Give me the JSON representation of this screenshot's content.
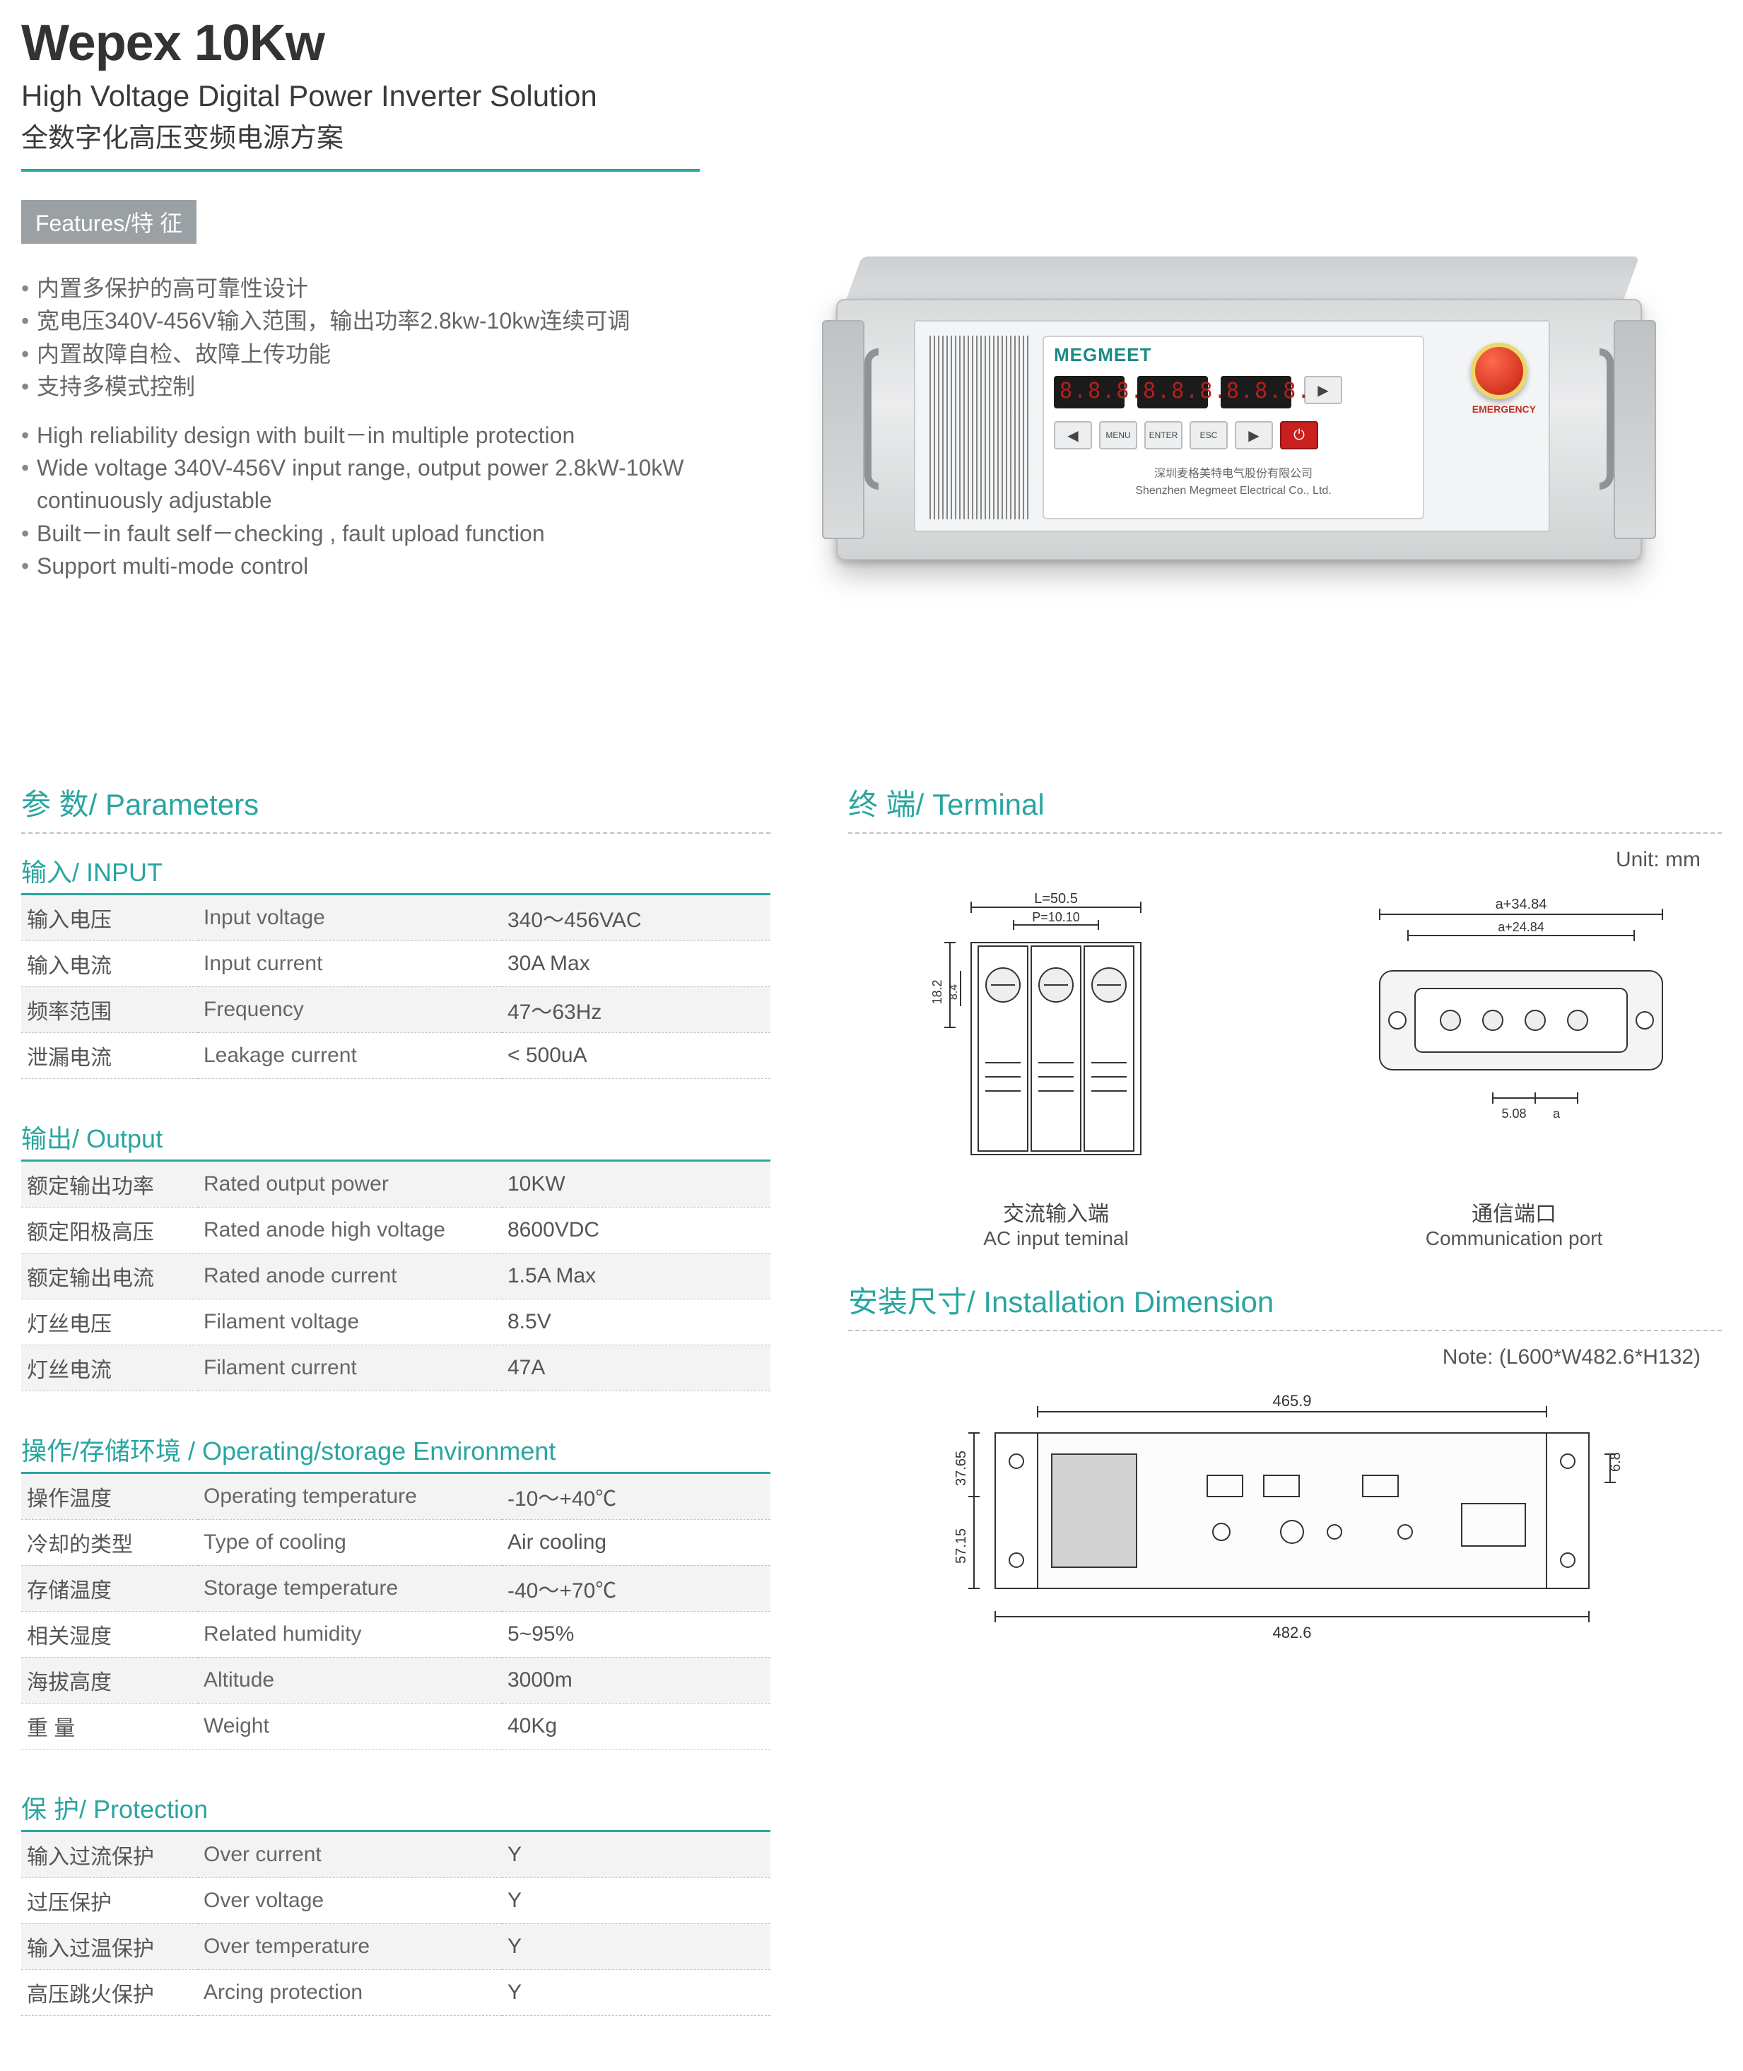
{
  "header": {
    "title": "Wepex 10Kw",
    "subtitle_en": "High Voltage Digital Power Inverter Solution",
    "subtitle_cn": "全数字化高压变频电源方案"
  },
  "features": {
    "badge": "Features/特 征",
    "items_cn": [
      "内置多保护的高可靠性设计",
      "宽电压340V-456V输入范围，输出功率2.8kw-10kw连续可调",
      "内置故障自检、故障上传功能",
      "支持多模式控制"
    ],
    "items_en": [
      "High reliability design with built－in multiple protection",
      "Wide voltage 340V-456V input range, output power 2.8kW-10kW continuously adjustable",
      "Built－in fault self－checking , fault upload function",
      "Support multi-mode control"
    ]
  },
  "product_panel": {
    "brand": "MEGMEET",
    "estop_label": "EMERGENCY",
    "footer_cn": "深圳麦格美特电气股份有限公司",
    "footer_en": "Shenzhen Megmeet Electrical Co., Ltd."
  },
  "parameters": {
    "title": "参 数/ Parameters",
    "input": {
      "title": "输入/ INPUT",
      "rows": [
        {
          "cn": "输入电压",
          "en": "Input voltage",
          "val": "340～456VAC"
        },
        {
          "cn": "输入电流",
          "en": "Input current",
          "val": "30A Max"
        },
        {
          "cn": "频率范围",
          "en": "Frequency",
          "val": "47～63Hz"
        },
        {
          "cn": "泄漏电流",
          "en": "Leakage current",
          "val": "< 500uA"
        }
      ]
    },
    "output": {
      "title": "输出/ Output",
      "rows": [
        {
          "cn": "额定输出功率",
          "en": "Rated output power",
          "val": "10KW"
        },
        {
          "cn": "额定阳极高压",
          "en": "Rated anode high voltage",
          "val": "8600VDC"
        },
        {
          "cn": "额定输出电流",
          "en": "Rated anode current",
          "val": "1.5A Max"
        },
        {
          "cn": "灯丝电压",
          "en": "Filament voltage",
          "val": "8.5V"
        },
        {
          "cn": "灯丝电流",
          "en": "Filament current",
          "val": "47A"
        }
      ]
    },
    "environment": {
      "title": "操作/存储环境 / Operating/storage Environment",
      "rows": [
        {
          "cn": "操作温度",
          "en": "Operating temperature",
          "val": "-10～+40℃"
        },
        {
          "cn": "冷却的类型",
          "en": "Type of cooling",
          "val": "Air cooling"
        },
        {
          "cn": "存储温度",
          "en": "Storage temperature",
          "val": "-40～+70℃"
        },
        {
          "cn": "相关湿度",
          "en": "Related humidity",
          "val": "5~95%"
        },
        {
          "cn": "海拔高度",
          "en": "Altitude",
          "val": "3000m"
        },
        {
          "cn": "重  量",
          "en": "Weight",
          "val": "40Kg"
        }
      ]
    },
    "protection": {
      "title": "保 护/ Protection",
      "rows": [
        {
          "cn": "输入过流保护",
          "en": "Over current",
          "val": "Y"
        },
        {
          "cn": "过压保护",
          "en": "Over voltage",
          "val": "Y"
        },
        {
          "cn": "输入过温保护",
          "en": "Over temperature",
          "val": "Y"
        },
        {
          "cn": "高压跳火保护",
          "en": "Arcing protection",
          "val": "Y"
        }
      ]
    }
  },
  "terminal": {
    "title": "终 端/ Terminal",
    "unit_label": "Unit: mm",
    "ac_input": {
      "caption_cn": "交流输入端",
      "caption_en": "AC input teminal",
      "dims": {
        "L": "L=50.5",
        "P": "P=10.10",
        "h1": "18.2",
        "h2": "8.4"
      }
    },
    "comm_port": {
      "caption_cn": "通信端口",
      "caption_en": "Communication port",
      "dims": {
        "w1": "a+34.84",
        "w2": "a+24.84",
        "g": "5.08",
        "a": "a"
      }
    }
  },
  "installation": {
    "title": "安装尺寸/ Installation Dimension",
    "note": "Note: (L600*W482.6*H132)",
    "dims": {
      "w_inner": "465.9",
      "w_outer": "482.6",
      "h_left1": "37.65",
      "h_left2": "57.15",
      "h_right": "6.8"
    }
  },
  "style": {
    "accent": "#2aa5a0",
    "text": "#555555",
    "badge_bg": "#9aa0a3",
    "row_alt_bg": "#f3f3f3",
    "title_color": "#333333"
  }
}
